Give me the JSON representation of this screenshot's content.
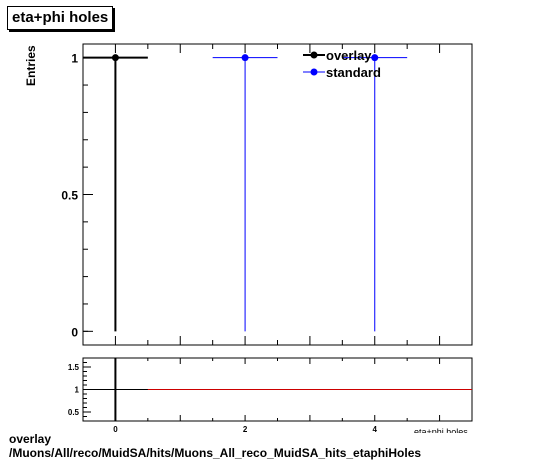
{
  "title": "eta+phi holes",
  "caption_line1": "overlay",
  "caption_line2": "/Muons/All/reco/MuidSA/hits/Muons_All_reco_MuidSA_hits_etaphiHoles",
  "chart_data": [
    {
      "type": "scatter",
      "panel": "main",
      "xlabel": "eta+phi holes",
      "ylabel": "Entries",
      "xlim": [
        -0.5,
        5.5
      ],
      "ylim": [
        -0.05,
        1.05
      ],
      "yticks": [
        0,
        0.5,
        1
      ],
      "ytick_labels": [
        "0",
        "0.5",
        "1"
      ],
      "series": [
        {
          "name": "overlay",
          "color": "#000000",
          "points": [
            {
              "x": 0,
              "y": 1,
              "xerr": 0.5,
              "yerr_low": 1,
              "yerr_high": 0
            }
          ]
        },
        {
          "name": "standard",
          "color": "#0000ff",
          "points": [
            {
              "x": 2,
              "y": 1,
              "xerr": 0.5,
              "yerr_low": 1,
              "yerr_high": 0
            },
            {
              "x": 4,
              "y": 1,
              "xerr": 0.5,
              "yerr_low": 1,
              "yerr_high": 0
            }
          ]
        }
      ],
      "legend_position": "top-right"
    },
    {
      "type": "line",
      "panel": "ratio",
      "xlim": [
        -0.5,
        5.5
      ],
      "ylim": [
        0.3,
        1.7
      ],
      "xticks": [
        0,
        2,
        4
      ],
      "xtick_labels": [
        "0",
        "2",
        "4"
      ],
      "yticks": [
        0.5,
        1,
        1.5
      ],
      "ytick_labels": [
        "0.5",
        "1",
        "1.5"
      ],
      "reference_line": {
        "y": 1,
        "color": "#cc0000"
      },
      "ratio_points": [
        {
          "x": 0,
          "y": 1,
          "xerr": 0.5,
          "color": "#000000"
        }
      ]
    }
  ]
}
